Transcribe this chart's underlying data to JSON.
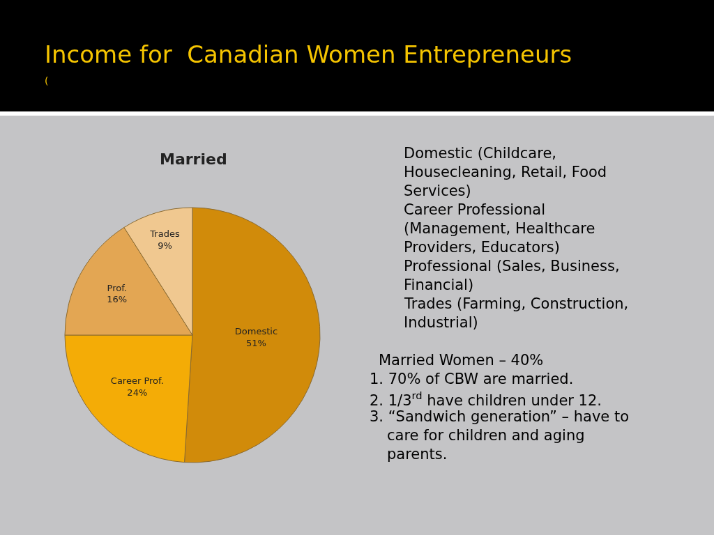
{
  "chart_data": {
    "type": "pie",
    "title": "Income for  Canadian Women Entrepreneurs",
    "subtitle": "(",
    "legend_title": "Married",
    "categories": [
      "Domestic",
      "Career Prof.",
      "Prof.",
      "Trades"
    ],
    "values": [
      51,
      24,
      16,
      9
    ],
    "colors": [
      "#d18b0a",
      "#f4ac06",
      "#e3a653",
      "#f0c890"
    ],
    "value_labels": [
      "51%",
      "24%",
      "16%",
      "9%"
    ],
    "annotations": [
      "Domestic (Childcare, Housecleaning, Retail, Food Services)",
      "Career Professional (Management, Healthcare Providers, Educators)",
      "Professional (Sales, Business, Financial)",
      "Trades (Farming, Construction, Industrial)",
      "Married Women – 40%",
      "1. 70% of CBW are married.",
      "2. 1/3$^{rd}$ have children under 12.",
      "3. “Sandwich generation” – have to care for children and aging parents."
    ]
  }
}
